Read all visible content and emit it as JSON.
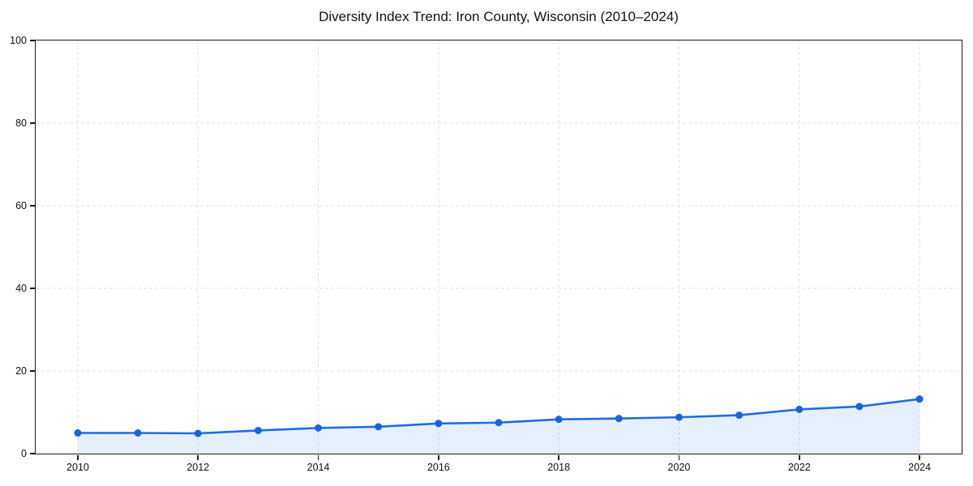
{
  "figure": {
    "background": "#ffffff"
  },
  "chart_data": {
    "type": "line",
    "title": "Diversity Index Trend: Iron County, Wisconsin (2010–2024)",
    "xlabel": "",
    "ylabel": "",
    "x": [
      2010,
      2011,
      2012,
      2013,
      2014,
      2015,
      2016,
      2017,
      2018,
      2019,
      2020,
      2021,
      2022,
      2023,
      2024
    ],
    "series": [
      {
        "name": "Diversity Index",
        "values": [
          5.0,
          5.0,
          4.9,
          5.6,
          6.2,
          6.5,
          7.3,
          7.5,
          8.3,
          8.5,
          8.8,
          9.3,
          10.7,
          11.4,
          13.2
        ]
      }
    ],
    "xticks": [
      2010,
      2012,
      2014,
      2016,
      2018,
      2020,
      2022,
      2024
    ],
    "yticks": [
      0,
      20,
      40,
      60,
      80,
      100
    ],
    "xlim": [
      2009.3,
      2024.7
    ],
    "ylim": [
      0,
      100
    ],
    "grid": true,
    "grid_style": "dashed",
    "legend": "none",
    "marker": "circle",
    "area_fill": true,
    "colors": {
      "line": "#1f6ce0",
      "marker": "#1b64d8",
      "area_fill": "#1f6ce0",
      "area_fill_opacity": 0.11,
      "grid": "#e1e1e1",
      "axis": "#1a1a1a",
      "text": "#111111"
    }
  }
}
